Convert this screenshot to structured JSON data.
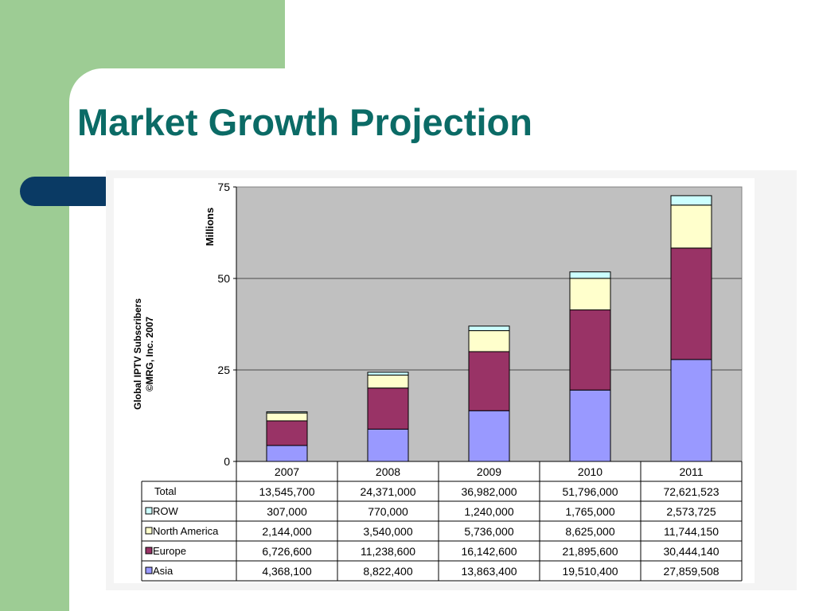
{
  "slide": {
    "title": "Market Growth Projection"
  },
  "colors": {
    "band": "#9dcc94",
    "title": "#0b6b66",
    "pill": "#0a3a64",
    "plot_bg": "#c0c0c0"
  },
  "chart_data": {
    "type": "bar",
    "stacked": true,
    "categories": [
      "2007",
      "2008",
      "2009",
      "2010",
      "2011"
    ],
    "ylabel": "Millions",
    "side_label": [
      "Global IPTV Subscribers",
      "©MRG, Inc. 2007"
    ],
    "ylim": [
      0,
      75
    ],
    "yticks": [
      0,
      25,
      50,
      75
    ],
    "grid": true,
    "series": [
      {
        "name": "Asia",
        "color": "#9999ff",
        "values": [
          4.3681,
          8.8224,
          13.8634,
          19.5104,
          27.859508
        ]
      },
      {
        "name": "Europe",
        "color": "#993366",
        "values": [
          6.7266,
          11.2386,
          16.1426,
          21.8956,
          30.44414
        ]
      },
      {
        "name": "North America",
        "color": "#ffffcc",
        "values": [
          2.144,
          3.54,
          5.736,
          8.625,
          11.74415
        ]
      },
      {
        "name": "ROW",
        "color": "#ccffff",
        "values": [
          0.307,
          0.77,
          1.24,
          1.765,
          2.573725
        ]
      }
    ],
    "table": {
      "rows": [
        {
          "label": "Total",
          "swatch": "",
          "cells": [
            "13,545,700",
            "24,371,000",
            "36,982,000",
            "51,796,000",
            "72,621,523"
          ]
        },
        {
          "label": "ROW",
          "swatch": "#ccffff",
          "cells": [
            "307,000",
            "770,000",
            "1,240,000",
            "1,765,000",
            "2,573,725"
          ]
        },
        {
          "label": "North America",
          "swatch": "#ffffcc",
          "cells": [
            "2,144,000",
            "3,540,000",
            "5,736,000",
            "8,625,000",
            "11,744,150"
          ]
        },
        {
          "label": "Europe",
          "swatch": "#993366",
          "cells": [
            "6,726,600",
            "11,238,600",
            "16,142,600",
            "21,895,600",
            "30,444,140"
          ]
        },
        {
          "label": "Asia",
          "swatch": "#9999ff",
          "cells": [
            "4,368,100",
            "8,822,400",
            "13,863,400",
            "19,510,400",
            "27,859,508"
          ]
        }
      ]
    }
  }
}
